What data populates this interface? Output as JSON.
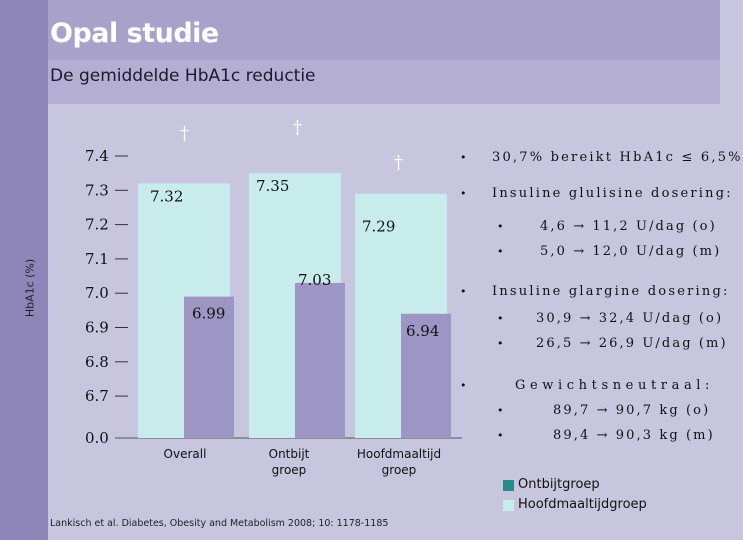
{
  "title": "Opal studie",
  "subtitle": "De gemiddelde HbA1c reductie",
  "chart_data": {
    "type": "bar",
    "ylabel": "HbA1c (%)",
    "y_ticks": [
      "7.4",
      "7.3",
      "7.2",
      "7.1",
      "7.0",
      "6.9",
      "6.8",
      "6.7",
      "0.0"
    ],
    "categories": [
      "Overall",
      "Ontbijt\ngroep",
      "Hoofdmaaltijd\ngroep"
    ],
    "category_lines": [
      [
        "Overall"
      ],
      [
        "Ontbijt",
        "groep"
      ],
      [
        "Hoofdmaaltijd",
        "groep"
      ]
    ],
    "series": [
      {
        "values": [
          7.32,
          7.35,
          7.29
        ],
        "labels": [
          "7.32",
          "7.35",
          "7.29"
        ],
        "color": "#c8ecec"
      },
      {
        "values": [
          6.99,
          7.03,
          6.94
        ],
        "labels": [
          "6.99",
          "7.03",
          "6.94"
        ],
        "color": "#9d96c4"
      }
    ],
    "daggers": [
      "†",
      "†",
      "†"
    ],
    "axis_break": true,
    "grid": false
  },
  "bullets": [
    {
      "level": 1,
      "text": "30,7% bereikt HbA1c ≤ 6,5%"
    },
    {
      "level": 1,
      "text": "Insuline glulisine dosering:"
    },
    {
      "level": 2,
      "text": "4,6 → 11,2 U/dag (o)"
    },
    {
      "level": 2,
      "text": "5,0 → 12,0 U/dag (m)"
    },
    {
      "level": 1,
      "text": "Insuline glargine dosering:"
    },
    {
      "level": 2,
      "text": "30,9 → 32,4 U/dag (o)"
    },
    {
      "level": 2,
      "text": "26,5 → 26,9 U/dag (m)"
    },
    {
      "level": 1,
      "text": "Gewichtsneutraal:"
    },
    {
      "level": 2,
      "text": "89,7 → 90,7 kg (o)"
    },
    {
      "level": 2,
      "text": "89,4 → 90,3 kg (m)"
    }
  ],
  "legend": [
    {
      "label": "Ontbijtgroep",
      "color": "#2a8a87"
    },
    {
      "label": "Hoofdmaaltijdgroep",
      "color": "#c8ecec"
    }
  ],
  "reference": "Lankisch et al. Diabetes, Obesity and Metabolism 2008; 10: 1178-1185"
}
